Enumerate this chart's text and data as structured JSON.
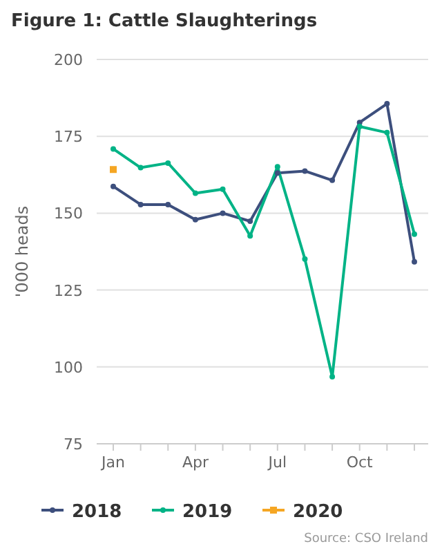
{
  "chart_data": {
    "type": "line",
    "title": "Figure 1: Cattle Slaughterings",
    "ylabel": "'000 heads",
    "categories": [
      "Jan",
      null,
      null,
      "Apr",
      null,
      null,
      "Jul",
      null,
      null,
      "Oct",
      null,
      null
    ],
    "series": [
      {
        "name": "2018",
        "color": "#3d4f7d",
        "values": [
          158.7,
          152.8,
          152.8,
          147.9,
          150,
          147.4,
          163.1,
          163.7,
          160.7,
          179.5,
          185.6,
          134.2
        ]
      },
      {
        "name": "2019",
        "color": "#00b386",
        "values": [
          170.9,
          164.8,
          166.3,
          156.5,
          157.8,
          142.6,
          165.1,
          135.1,
          96.8,
          178.2,
          176.2,
          143.2
        ]
      },
      {
        "name": "2020",
        "color": "#f5a623",
        "marker": "square",
        "values": [
          164.2,
          null,
          null,
          null,
          null,
          null,
          null,
          null,
          null,
          null,
          null,
          null
        ]
      }
    ],
    "ylim": [
      75,
      200
    ],
    "yticks": [
      75,
      100,
      125,
      150,
      175,
      200
    ],
    "grid": "y",
    "legend": "bottom",
    "marker": "circle",
    "line_style": "solid",
    "annotations": [
      "Source: CSO Ireland"
    ]
  }
}
